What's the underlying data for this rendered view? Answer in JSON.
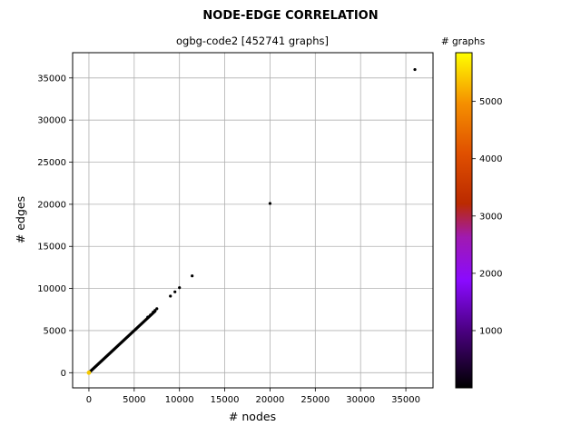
{
  "chart_data": {
    "type": "scatter",
    "title": "NODE-EDGE CORRELATION",
    "subtitle": "ogbg-code2 [452741 graphs]",
    "xlabel": "# nodes",
    "ylabel": "# edges",
    "xlim": [
      -1800,
      38000
    ],
    "ylim": [
      -1800,
      38000
    ],
    "xticks": [
      0,
      5000,
      10000,
      15000,
      20000,
      25000,
      30000,
      35000
    ],
    "yticks": [
      0,
      5000,
      10000,
      15000,
      20000,
      25000,
      30000,
      35000
    ],
    "grid": true,
    "colorbar": {
      "label": "# graphs",
      "colormap": "gnuplot",
      "range": [
        1,
        5850
      ],
      "ticks": [
        1000,
        2000,
        3000,
        4000,
        5000
      ]
    },
    "points": [
      {
        "x": 36000,
        "y": 36000
      },
      {
        "x": 20000,
        "y": 20100
      },
      {
        "x": 11400,
        "y": 11500
      },
      {
        "x": 10000,
        "y": 10100
      },
      {
        "x": 9500,
        "y": 9600
      },
      {
        "x": 9000,
        "y": 9100
      },
      {
        "x": 7500,
        "y": 7600
      },
      {
        "x": 7300,
        "y": 7400
      },
      {
        "x": 7100,
        "y": 7200
      },
      {
        "x": 6800,
        "y": 6850
      },
      {
        "x": 6500,
        "y": 6600
      }
    ],
    "dense_band": {
      "x_range": [
        0,
        7300
      ],
      "slope": 1.0
    },
    "color_hotspot": {
      "x": 0,
      "y": 0,
      "count": 5850
    }
  }
}
